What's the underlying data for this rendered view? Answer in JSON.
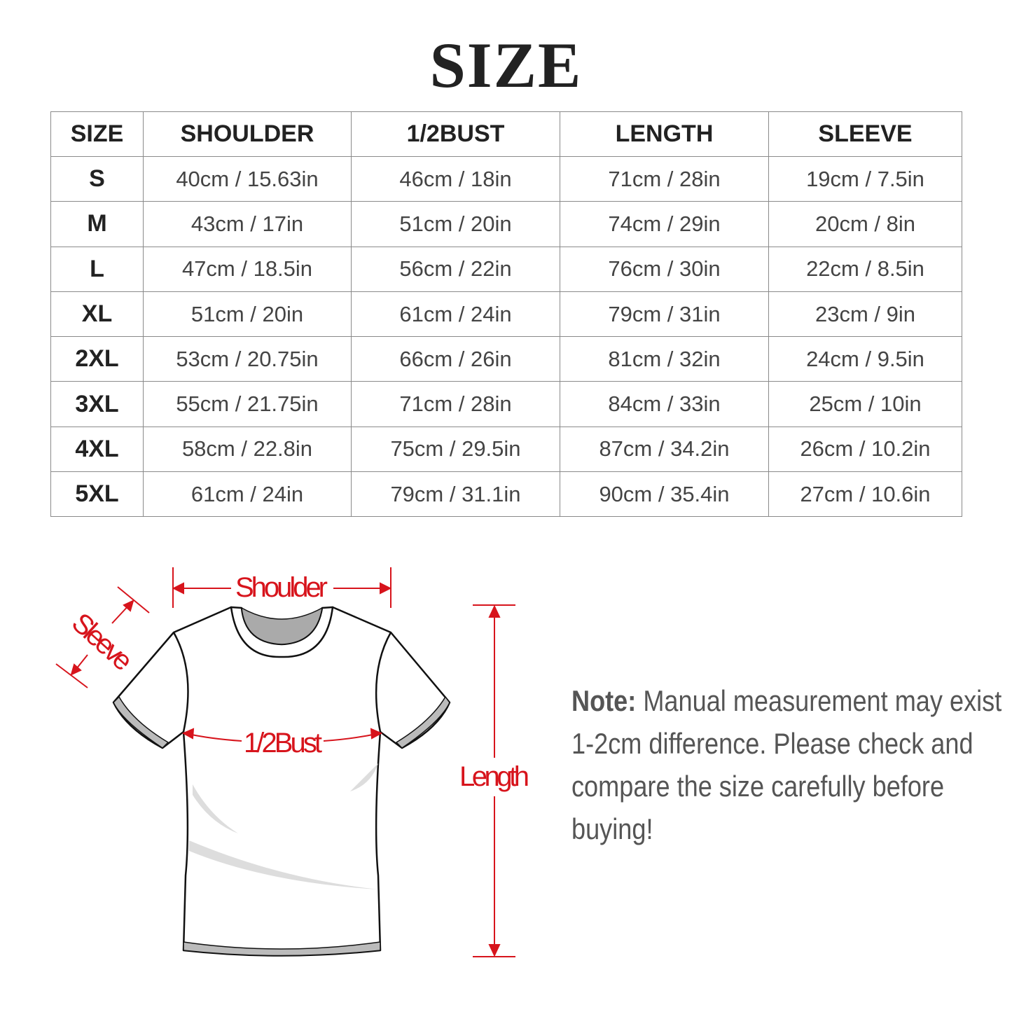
{
  "title": "SIZE",
  "table": {
    "headers": [
      "SIZE",
      "SHOULDER",
      "1/2BUST",
      "LENGTH",
      "SLEEVE"
    ],
    "rows": [
      [
        "S",
        "40cm / 15.63in",
        "46cm / 18in",
        "71cm / 28in",
        "19cm / 7.5in"
      ],
      [
        "M",
        "43cm / 17in",
        "51cm / 20in",
        "74cm / 29in",
        "20cm / 8in"
      ],
      [
        "L",
        "47cm / 18.5in",
        "56cm / 22in",
        "76cm / 30in",
        "22cm / 8.5in"
      ],
      [
        "XL",
        "51cm / 20in",
        "61cm / 24in",
        "79cm / 31in",
        "23cm / 9in"
      ],
      [
        "2XL",
        "53cm / 20.75in",
        "66cm / 26in",
        "81cm / 32in",
        "24cm / 9.5in"
      ],
      [
        "3XL",
        "55cm / 21.75in",
        "71cm / 28in",
        "84cm / 33in",
        "25cm / 10in"
      ],
      [
        "4XL",
        "58cm / 22.8in",
        "75cm / 29.5in",
        "87cm / 34.2in",
        "26cm / 10.2in"
      ],
      [
        "5XL",
        "61cm / 24in",
        "79cm / 31.1in",
        "90cm / 35.4in",
        "27cm / 10.6in"
      ]
    ]
  },
  "diagram": {
    "shoulder": "Shoulder",
    "sleeve": "Sleeve",
    "bust": "1/2Bust",
    "length": "Length",
    "accent": "#d7141c"
  },
  "note": {
    "label": "Note:",
    "text": " Manual measurement may exist 1-2cm difference. Please check and compare the size carefully before buying!"
  }
}
